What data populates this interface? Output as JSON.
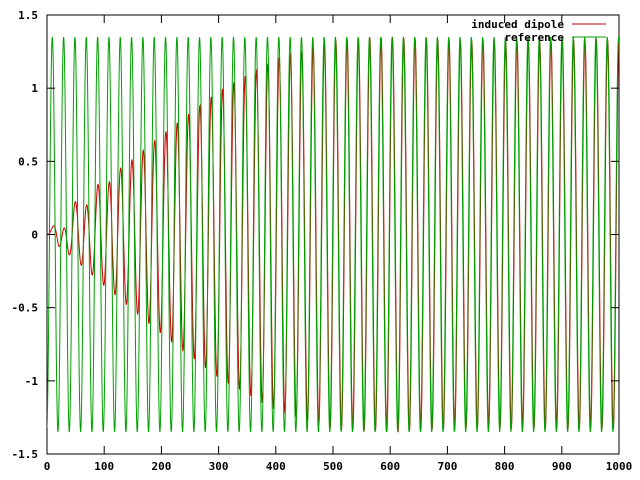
{
  "chart_data": {
    "type": "line",
    "x_range": [
      0,
      1000
    ],
    "ylim": [
      -1.5,
      1.5
    ],
    "xticks": [
      "0",
      "100",
      "200",
      "300",
      "400",
      "500",
      "600",
      "700",
      "800",
      "900",
      "1000"
    ],
    "yticks": [
      "1.5",
      "1",
      "0.5",
      "0",
      "-0.5",
      "-1",
      "-1.5"
    ],
    "grid": false,
    "legend_position": "top-right",
    "series": [
      {
        "name": "induced dipole",
        "color": "#cc0000",
        "description_values": {
          "period": 19.8,
          "amplitude_envelope": [
            [
              0,
              0.0
            ],
            [
              100,
              0.35
            ],
            [
              200,
              0.68
            ],
            [
              300,
              0.98
            ],
            [
              400,
              1.2
            ],
            [
              500,
              1.33
            ],
            [
              600,
              1.35
            ],
            [
              700,
              1.33
            ],
            [
              800,
              1.32
            ],
            [
              900,
              1.33
            ],
            [
              1000,
              1.33
            ]
          ]
        }
      },
      {
        "name": "reference",
        "color": "#00a000",
        "description_values": {
          "period": 19.8,
          "amplitude": 1.35
        }
      }
    ]
  }
}
